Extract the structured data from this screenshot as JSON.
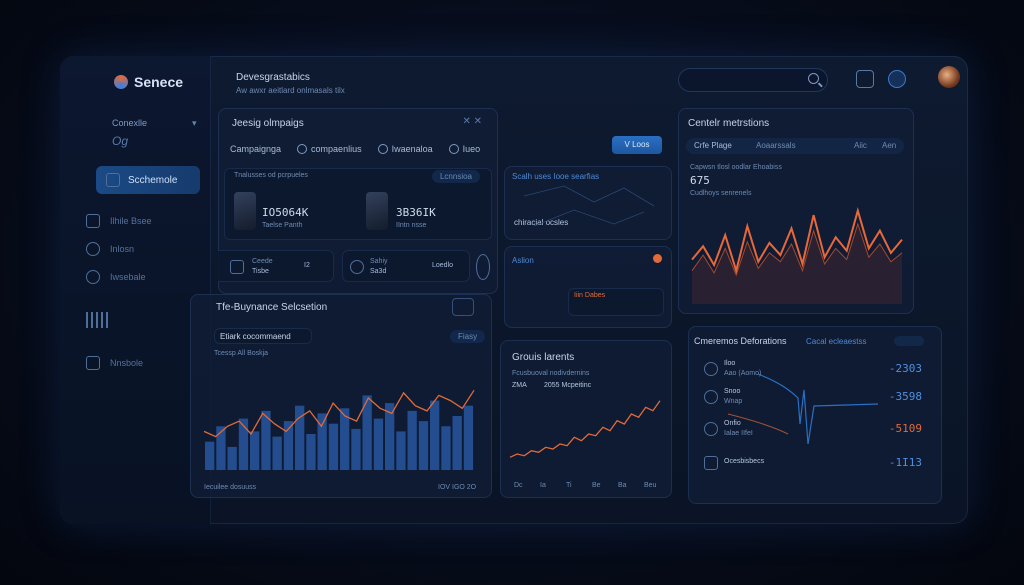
{
  "app": {
    "name": "Senece"
  },
  "header": {
    "title": "Devesgrastabics",
    "subtitle": "Aw awxr aeitlard onlmasals tilx"
  },
  "sidebar": {
    "section": "Conexlle",
    "section_sub": "Og",
    "active": "Scchemole",
    "items": [
      {
        "label": "Ilhile Bsee"
      },
      {
        "label": "Inlosn"
      },
      {
        "label": "Iwsebale"
      },
      {
        "label": ""
      },
      {
        "label": "Nnsbole"
      }
    ]
  },
  "campaigns": {
    "title": "Jeesig olmpaigs",
    "tabs": [
      "Campaignga",
      "compaenlius",
      "Iwaenaloa",
      "Iueo"
    ],
    "button": "V  Loos",
    "card1": {
      "value": "IO5064K",
      "label": "Taelse Panth",
      "caption": "Tnalusses od pcrpueles"
    },
    "card2": {
      "value": "3B36IK",
      "label": "IIntn nsse"
    },
    "card_right_tag": "Lcnnsioa",
    "stats": [
      {
        "a": "Ceede",
        "b": "Tisbe",
        "c": "I2"
      },
      {
        "a": "Sahiy",
        "b": "Sa3d",
        "c": "Loedlo"
      }
    ]
  },
  "map": {
    "title": "Scalh uses Iooe searfias",
    "caption": "chiracial ocsles",
    "alert": "Aslion",
    "popup": "Iiin Dabes"
  },
  "performance": {
    "title": "Tfe-Buynance Selcsetion",
    "dropdown": "Etiark cocommaend",
    "legend": "Tcessp All Boskja",
    "button": "Fiasy",
    "footer_left": "Iecuilee  dosuuss",
    "footer_right": "IOV IGO 2O",
    "chart_data": {
      "type": "bar",
      "series": [
        {
          "name": "bars",
          "values": [
            22,
            34,
            18,
            40,
            30,
            46,
            26,
            38,
            50,
            28,
            44,
            36,
            48,
            32,
            58,
            40,
            52,
            30,
            46,
            38,
            54,
            34,
            42,
            50
          ]
        },
        {
          "name": "line",
          "values": [
            30,
            26,
            34,
            38,
            28,
            44,
            36,
            30,
            40,
            46,
            34,
            52,
            42,
            38,
            56,
            48,
            44,
            60,
            50,
            46,
            58,
            54,
            48,
            62
          ]
        }
      ]
    }
  },
  "growth": {
    "title": "Grouis larents",
    "legend": "Fcusbuoval nodivdernins",
    "values": [
      "ZMA",
      "2055 Mcpeitinc"
    ],
    "axis": [
      "Dc",
      "Ia",
      "Ti",
      "Be",
      "Ba",
      "Beu"
    ],
    "chart_data": {
      "type": "line",
      "values": [
        10,
        12,
        11,
        14,
        13,
        16,
        15,
        18,
        17,
        22,
        20,
        24,
        23,
        28,
        26,
        32,
        30,
        36,
        34,
        40,
        38,
        44
      ]
    }
  },
  "central": {
    "title": "Centelr metrstions",
    "tabs": [
      "Crfe Plage",
      "Aoaarssals",
      "Aiic",
      "Aen"
    ],
    "label": "Capwsn tlosl oodlar Ehoabiss",
    "value": "675",
    "sub": "Cudlhoys senrenels",
    "chart_data": {
      "type": "line",
      "series": [
        {
          "name": "a",
          "values": [
            40,
            52,
            35,
            62,
            30,
            70,
            38,
            55,
            44,
            68,
            36,
            80,
            42,
            60,
            48,
            84,
            50,
            66,
            46,
            58
          ]
        },
        {
          "name": "b",
          "values": [
            30,
            44,
            28,
            50,
            26,
            56,
            32,
            46,
            38,
            54,
            30,
            66,
            36,
            50,
            40,
            72,
            42,
            54,
            38,
            46
          ]
        }
      ]
    }
  },
  "ops": {
    "title": "Cmeremos Deforations",
    "link": "Cacal ecleaestss",
    "rows": [
      {
        "label": "Iloo",
        "sub": "Aao (Aomo)",
        "value": "-2303"
      },
      {
        "label": "Snoo",
        "sub": "Wnap",
        "value": "-3598"
      },
      {
        "label": "Onfio",
        "sub": "Ialae IIfeI",
        "value": "-5109"
      },
      {
        "label": "Ocesbisbecs",
        "sub": "",
        "value": "-1I13"
      }
    ]
  }
}
